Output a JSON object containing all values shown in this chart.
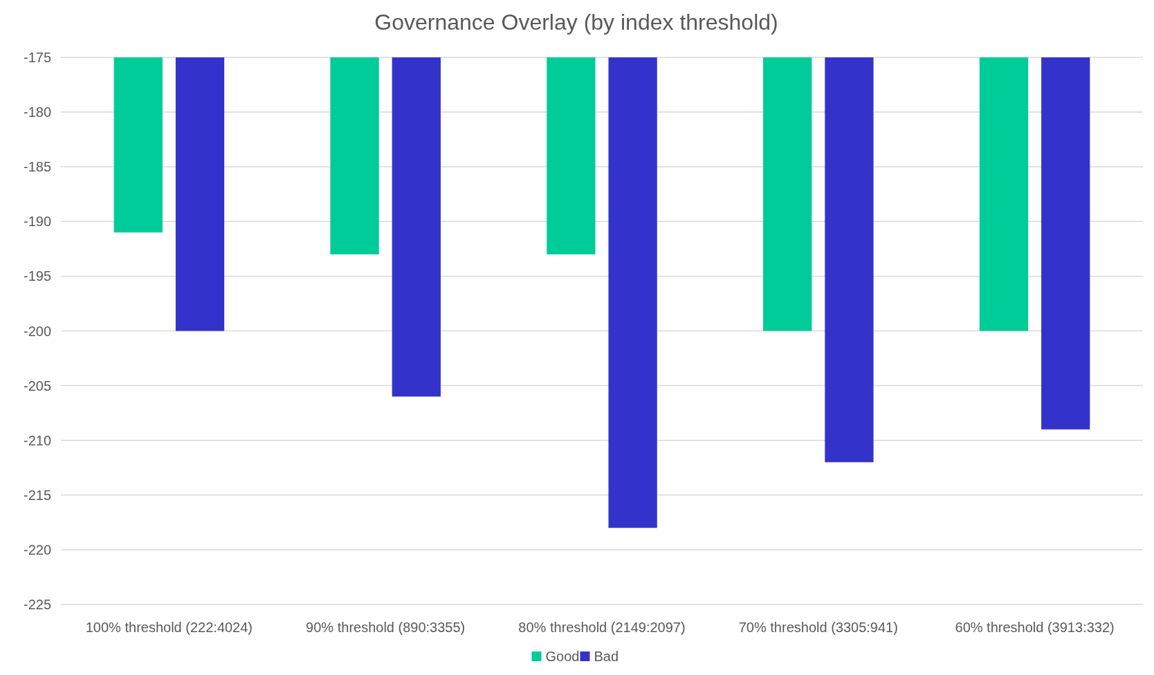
{
  "chart_data": {
    "type": "bar",
    "title": "Governance Overlay (by index threshold)",
    "categories": [
      "100% threshold (222:4024)",
      "90% threshold (890:3355)",
      "80% threshold (2149:2097)",
      "70% threshold (3305:941)",
      "60% threshold (3913:332)"
    ],
    "series": [
      {
        "name": "Good",
        "color": "#00cc99",
        "values": [
          -191,
          -193,
          -193,
          -200,
          -200
        ]
      },
      {
        "name": "Bad",
        "color": "#3333cc",
        "values": [
          -200,
          -206,
          -218,
          -212,
          -209
        ]
      }
    ],
    "ylim": [
      -225,
      -175
    ],
    "yticks": [
      -225,
      -220,
      -215,
      -210,
      -205,
      -200,
      -195,
      -190,
      -185,
      -180,
      -175
    ],
    "grid": "y",
    "legend": "bottom"
  }
}
